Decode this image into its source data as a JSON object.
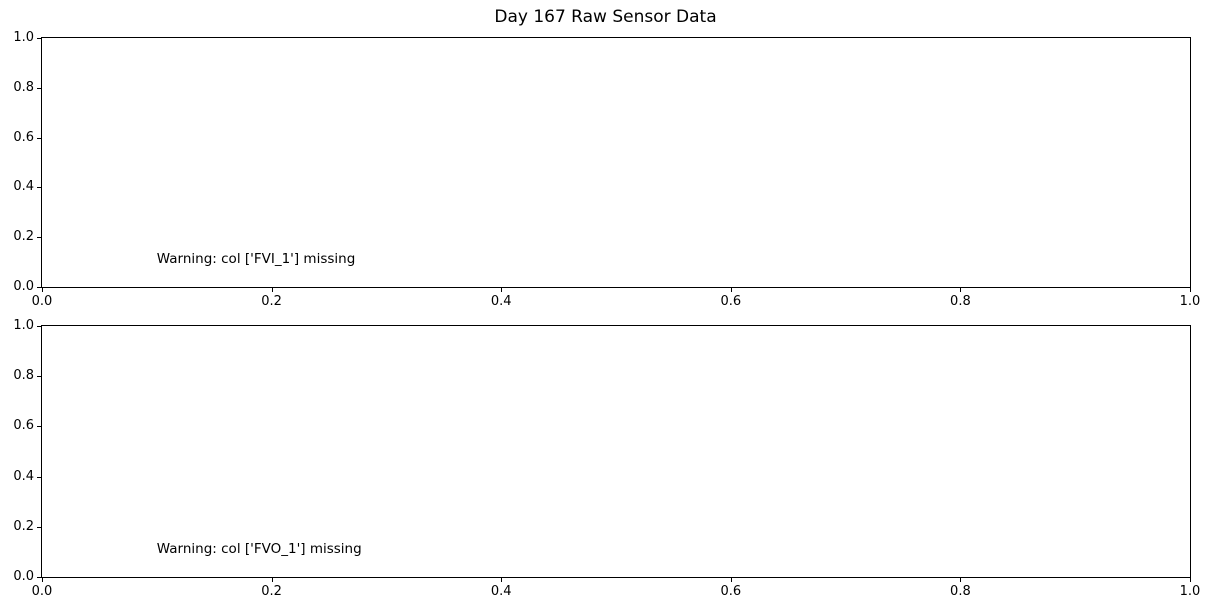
{
  "figure": {
    "title": "Day 167 Raw Sensor Data",
    "background_color": "#ffffff",
    "spine_color": "#000000",
    "text_color": "#000000"
  },
  "chart_data": [
    {
      "type": "line",
      "title": "",
      "xlabel": "",
      "ylabel": "",
      "xlim": [
        0.0,
        1.0
      ],
      "ylim": [
        0.0,
        1.0
      ],
      "xticks": [
        "0.0",
        "0.2",
        "0.4",
        "0.6",
        "0.8",
        "1.0"
      ],
      "yticks": [
        "0.0",
        "0.2",
        "0.4",
        "0.6",
        "0.8",
        "1.0"
      ],
      "grid": false,
      "series": [],
      "annotations": [
        {
          "text": "Warning: col ['FVI_1'] missing",
          "x": 0.1,
          "y": 0.1
        }
      ]
    },
    {
      "type": "line",
      "title": "",
      "xlabel": "",
      "ylabel": "",
      "xlim": [
        0.0,
        1.0
      ],
      "ylim": [
        0.0,
        1.0
      ],
      "xticks": [
        "0.0",
        "0.2",
        "0.4",
        "0.6",
        "0.8",
        "1.0"
      ],
      "yticks": [
        "0.0",
        "0.2",
        "0.4",
        "0.6",
        "0.8",
        "1.0"
      ],
      "grid": false,
      "series": [],
      "annotations": [
        {
          "text": "Warning: col ['FVO_1'] missing",
          "x": 0.1,
          "y": 0.1
        }
      ]
    }
  ]
}
